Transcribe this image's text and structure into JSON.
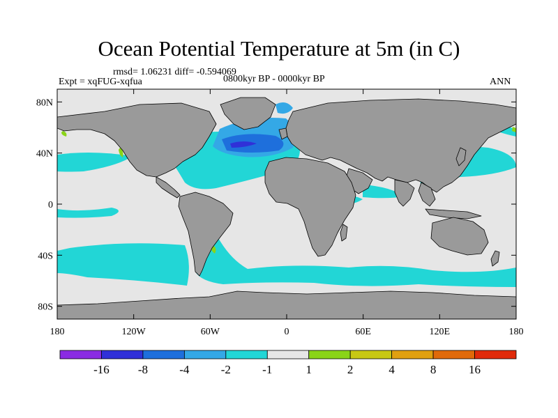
{
  "title": "Ocean Potential Temperature at 5m (in C)",
  "stats": "rmsd= 1.06231 diff= -0.594069",
  "experiment": "Expt = xqFUG-xqfua",
  "period": "0800kyr BP - 0000kyr BP",
  "season": "ANN",
  "map": {
    "projection": "cylindrical-equidistant",
    "lon_range": [
      -180,
      180
    ],
    "lat_range": [
      -90,
      90
    ],
    "land_color": "#9a9a9a",
    "ocean_background": "#e6e6e6",
    "y_ticks": [
      {
        "lat": 80,
        "label": "80N"
      },
      {
        "lat": 40,
        "label": "40N"
      },
      {
        "lat": 0,
        "label": "0"
      },
      {
        "lat": -40,
        "label": "40S"
      },
      {
        "lat": -80,
        "label": "80S"
      }
    ],
    "x_ticks": [
      {
        "lon": -180,
        "label": "180"
      },
      {
        "lon": -120,
        "label": "120W"
      },
      {
        "lon": -60,
        "label": "60W"
      },
      {
        "lon": 0,
        "label": "0"
      },
      {
        "lon": 60,
        "label": "60E"
      },
      {
        "lon": 120,
        "label": "120E"
      },
      {
        "lon": 180,
        "label": "180"
      }
    ]
  },
  "colorbar": {
    "colors": [
      "#8a2be2",
      "#3030d8",
      "#1e6fdc",
      "#34a8e6",
      "#22d6d6",
      "#e6e6e6",
      "#8ad418",
      "#c8c814",
      "#e0a010",
      "#e06a0a",
      "#e02a0a"
    ],
    "labels": [
      "-16",
      "-8",
      "-4",
      "-2",
      "-1",
      "1",
      "2",
      "4",
      "8",
      "16"
    ]
  }
}
